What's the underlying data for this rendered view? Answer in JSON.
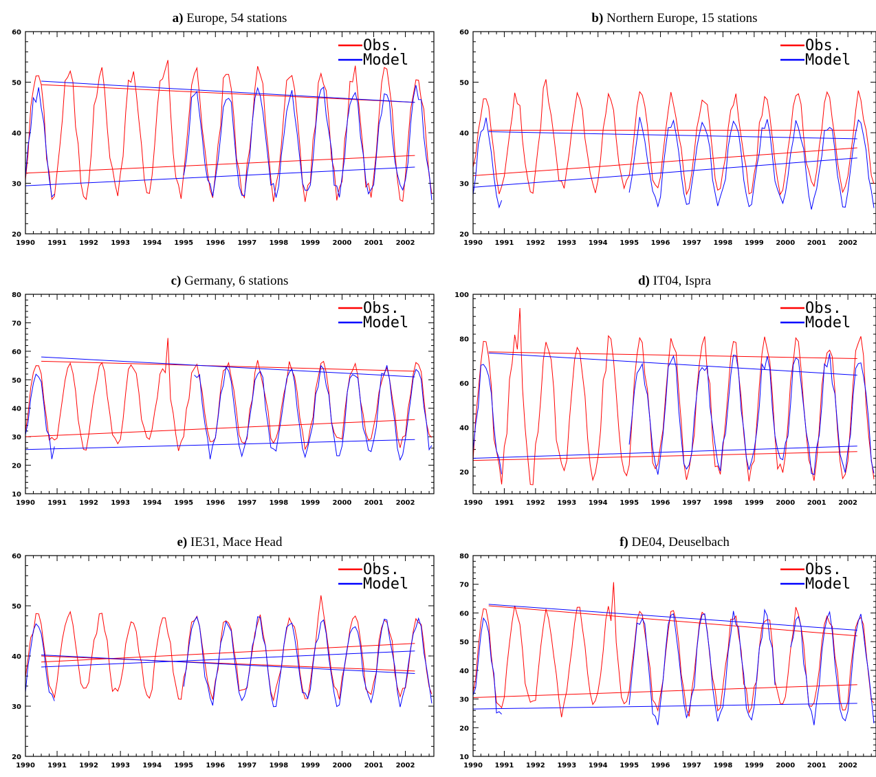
{
  "chart_data": [
    {
      "type": "line",
      "title_bold": "a)",
      "title": "Europe, 54 stations",
      "xlabel": "",
      "ylabel": "",
      "xlim": [
        1990,
        2002.9
      ],
      "ylim": [
        20,
        60
      ],
      "yticks": [
        20,
        30,
        40,
        50,
        60
      ],
      "ytick_labels": [
        "20",
        "30",
        "40",
        "50",
        "60"
      ],
      "xticks": [
        1990,
        1991,
        1992,
        1993,
        1994,
        1995,
        1996,
        1997,
        1998,
        1999,
        2000,
        2001,
        2002
      ],
      "xtick_labels": [
        "1990",
        "1991",
        "1992",
        "1993",
        "1994",
        "1995",
        "1996",
        "1997",
        "1998",
        "1999",
        "2000",
        "2001",
        "2002"
      ],
      "legend": {
        "position": "top-right",
        "entries": [
          "Obs.",
          "Model"
        ]
      },
      "series": [
        {
          "name": "Obs.",
          "color": "#ff0000",
          "start": 1990,
          "gaps": [],
          "amplitude": 12,
          "base": 40,
          "spike": [
            1994.5,
            8
          ],
          "trend_upper": [
            [
              1990.5,
              49.5
            ],
            [
              2002.3,
              46
            ]
          ],
          "trend_lower": [
            [
              1990,
              32
            ],
            [
              2002.3,
              35.5
            ]
          ]
        },
        {
          "name": "Model",
          "color": "#0000ff",
          "start": 1990,
          "gaps": [
            [
              1991,
              1995
            ]
          ],
          "amplitude": 10,
          "base": 38,
          "spike": null,
          "trend_upper": [
            [
              1990.5,
              50.2
            ],
            [
              2002.3,
              46
            ]
          ],
          "trend_lower": [
            [
              1990,
              29.5
            ],
            [
              2002.3,
              33.2
            ]
          ]
        }
      ]
    },
    {
      "type": "line",
      "title_bold": "b)",
      "title": "Northern Europe, 15 stations",
      "xlabel": "",
      "ylabel": "",
      "xlim": [
        1990,
        2002.9
      ],
      "ylim": [
        20,
        60
      ],
      "yticks": [
        20,
        30,
        40,
        50,
        60
      ],
      "ytick_labels": [
        "20",
        "30",
        "40",
        "50",
        "60"
      ],
      "xticks": [
        1990,
        1991,
        1992,
        1993,
        1994,
        1995,
        1996,
        1997,
        1998,
        1999,
        2000,
        2001,
        2002
      ],
      "xtick_labels": [
        "1990",
        "1991",
        "1992",
        "1993",
        "1994",
        "1995",
        "1996",
        "1997",
        "1998",
        "1999",
        "2000",
        "2001",
        "2002"
      ],
      "legend": {
        "position": "top-right",
        "entries": [
          "Obs.",
          "Model"
        ]
      },
      "series": [
        {
          "name": "Obs.",
          "color": "#ff0000",
          "start": 1990,
          "gaps": [],
          "amplitude": 9,
          "base": 38,
          "spike": [
            1992.3,
            4
          ],
          "trend_upper": [
            [
              1990.5,
              40.5
            ],
            [
              2002.3,
              40.5
            ]
          ],
          "trend_lower": [
            [
              1990,
              31.5
            ],
            [
              2002.3,
              37
            ]
          ]
        },
        {
          "name": "Model",
          "color": "#0000ff",
          "start": 1990,
          "gaps": [
            [
              1991,
              1995
            ]
          ],
          "amplitude": 8,
          "base": 34,
          "spike": null,
          "trend_upper": [
            [
              1990.5,
              40.2
            ],
            [
              2002.3,
              38.8
            ]
          ],
          "trend_lower": [
            [
              1990,
              29.2
            ],
            [
              2002.3,
              35
            ]
          ]
        }
      ]
    },
    {
      "type": "line",
      "title_bold": "c)",
      "title": "Germany, 6 stations",
      "xlabel": "",
      "ylabel": "",
      "xlim": [
        1990,
        2002.9
      ],
      "ylim": [
        10,
        80
      ],
      "yticks": [
        10,
        20,
        30,
        40,
        50,
        60,
        70,
        80
      ],
      "ytick_labels": [
        "10",
        "20",
        "30",
        "40",
        "50",
        "60",
        "70",
        "80"
      ],
      "xticks": [
        1990,
        1991,
        1992,
        1993,
        1994,
        1995,
        1996,
        1997,
        1998,
        1999,
        2000,
        2001,
        2002
      ],
      "xtick_labels": [
        "1990",
        "1991",
        "1992",
        "1993",
        "1994",
        "1995",
        "1996",
        "1997",
        "1998",
        "1999",
        "2000",
        "2001",
        "2002"
      ],
      "legend": {
        "position": "top-right",
        "entries": [
          "Obs.",
          "Model"
        ]
      },
      "series": [
        {
          "name": "Obs.",
          "color": "#ff0000",
          "start": 1990,
          "gaps": [],
          "amplitude": 14,
          "base": 41,
          "spike": [
            1994.5,
            16
          ],
          "trend_upper": [
            [
              1990.5,
              56.5
            ],
            [
              2002.3,
              53
            ]
          ],
          "trend_lower": [
            [
              1990,
              30
            ],
            [
              2002.3,
              36
            ]
          ]
        },
        {
          "name": "Model",
          "color": "#0000ff",
          "start": 1990,
          "gaps": [
            [
              1991,
              1995.3
            ]
          ],
          "amplitude": 15,
          "base": 39,
          "spike": null,
          "trend_upper": [
            [
              1990.5,
              58
            ],
            [
              2002.3,
              51
            ]
          ],
          "trend_lower": [
            [
              1990,
              25.5
            ],
            [
              2002.3,
              29
            ]
          ]
        }
      ]
    },
    {
      "type": "line",
      "title_bold": "d)",
      "title": "IT04, Ispra",
      "xlabel": "",
      "ylabel": "",
      "xlim": [
        1990,
        2002.9
      ],
      "ylim": [
        10,
        100
      ],
      "yticks": [
        20,
        40,
        60,
        80,
        100
      ],
      "ytick_labels": [
        "20",
        "40",
        "60",
        "80",
        "100"
      ],
      "xticks": [
        1990,
        1991,
        1992,
        1993,
        1994,
        1995,
        1996,
        1997,
        1998,
        1999,
        2000,
        2001,
        2002
      ],
      "xtick_labels": [
        "1990",
        "1991",
        "1992",
        "1993",
        "1994",
        "1995",
        "1996",
        "1997",
        "1998",
        "1999",
        "2000",
        "2001",
        "2002"
      ],
      "legend": {
        "position": "top-right",
        "entries": [
          "Obs.",
          "Model"
        ]
      },
      "series": [
        {
          "name": "Obs.",
          "color": "#ff0000",
          "start": 1990,
          "gaps": [],
          "amplitude": 30,
          "base": 48,
          "spike": [
            1991.5,
            22
          ],
          "trend_upper": [
            [
              1990.5,
              74
            ],
            [
              2002.3,
              71
            ]
          ],
          "trend_lower": [
            [
              1990,
              25
            ],
            [
              2002.3,
              29
            ]
          ]
        },
        {
          "name": "Model",
          "color": "#0000ff",
          "start": 1990,
          "gaps": [
            [
              1991,
              1995
            ]
          ],
          "amplitude": 25,
          "base": 46,
          "spike": null,
          "trend_upper": [
            [
              1990.5,
              73.5
            ],
            [
              2002.3,
              63.5
            ]
          ],
          "trend_lower": [
            [
              1990,
              26
            ],
            [
              2002.3,
              31.5
            ]
          ]
        }
      ]
    },
    {
      "type": "line",
      "title_bold": "e)",
      "title": "IE31, Mace Head",
      "xlabel": "",
      "ylabel": "",
      "xlim": [
        1990,
        2002.9
      ],
      "ylim": [
        20,
        60
      ],
      "yticks": [
        20,
        30,
        40,
        50,
        60
      ],
      "ytick_labels": [
        "20",
        "30",
        "40",
        "50",
        "60"
      ],
      "xticks": [
        1990,
        1991,
        1992,
        1993,
        1994,
        1995,
        1996,
        1997,
        1998,
        1999,
        2000,
        2001,
        2002
      ],
      "xtick_labels": [
        "1990",
        "1991",
        "1992",
        "1993",
        "1994",
        "1995",
        "1996",
        "1997",
        "1998",
        "1999",
        "2000",
        "2001",
        "2002"
      ],
      "legend": {
        "position": "top-right",
        "entries": [
          "Obs.",
          "Model"
        ]
      },
      "series": [
        {
          "name": "Obs.",
          "color": "#ff0000",
          "start": 1990,
          "gaps": [],
          "amplitude": 8,
          "base": 40,
          "spike": [
            1999.3,
            3
          ],
          "trend_upper": [
            [
              1990.5,
              38.8
            ],
            [
              2002.3,
              42.5
            ]
          ],
          "trend_lower": [
            [
              1990.5,
              40
            ],
            [
              2002.3,
              37
            ]
          ]
        },
        {
          "name": "Model",
          "color": "#0000ff",
          "start": 1990,
          "gaps": [
            [
              1991,
              1995
            ]
          ],
          "amplitude": 8,
          "base": 39,
          "spike": null,
          "trend_upper": [
            [
              1990.5,
              37.8
            ],
            [
              2002.3,
              41
            ]
          ],
          "trend_lower": [
            [
              1990.5,
              40.2
            ],
            [
              2002.3,
              36.5
            ]
          ]
        }
      ]
    },
    {
      "type": "line",
      "title_bold": "f)",
      "title": "DE04, Deuselbach",
      "xlabel": "",
      "ylabel": "",
      "xlim": [
        1990,
        2002.9
      ],
      "ylim": [
        10,
        80
      ],
      "yticks": [
        10,
        20,
        30,
        40,
        50,
        60,
        70,
        80
      ],
      "ytick_labels": [
        "10",
        "20",
        "30",
        "40",
        "50",
        "60",
        "70",
        "80"
      ],
      "xticks": [
        1990,
        1991,
        1992,
        1993,
        1994,
        1995,
        1996,
        1997,
        1998,
        1999,
        2000,
        2001,
        2002
      ],
      "xtick_labels": [
        "1990",
        "1991",
        "1992",
        "1993",
        "1994",
        "1995",
        "1996",
        "1997",
        "1998",
        "1999",
        "2000",
        "2001",
        "2002"
      ],
      "legend": {
        "position": "top-right",
        "entries": [
          "Obs.",
          "Model"
        ]
      },
      "series": [
        {
          "name": "Obs.",
          "color": "#ff0000",
          "start": 1990,
          "gaps": [],
          "amplitude": 17,
          "base": 43,
          "spike": [
            1994.5,
            15
          ],
          "trend_upper": [
            [
              1990.5,
              62.5
            ],
            [
              2002.3,
              52
            ]
          ],
          "trend_lower": [
            [
              1990,
              30.5
            ],
            [
              2002.3,
              35
            ]
          ]
        },
        {
          "name": "Model",
          "color": "#0000ff",
          "start": 1990,
          "gaps": [
            [
              1991,
              1995
            ],
            [
              1999.7,
              2000.1
            ]
          ],
          "amplitude": 18,
          "base": 41,
          "spike": null,
          "trend_upper": [
            [
              1990.5,
              63
            ],
            [
              2002.3,
              54
            ]
          ],
          "trend_lower": [
            [
              1990,
              26.5
            ],
            [
              2002.3,
              28.5
            ]
          ]
        }
      ]
    }
  ]
}
